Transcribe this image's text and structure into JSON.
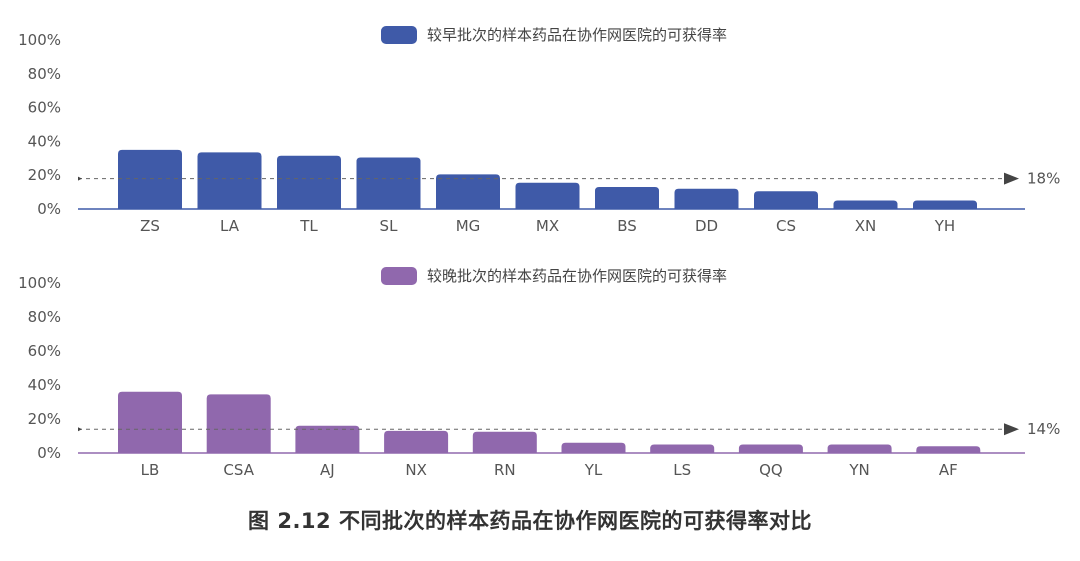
{
  "caption": "图 2.12 不同批次的样本药品在协作网医院的可获得率对比",
  "chart_data": [
    {
      "type": "bar",
      "legend": "较早批次的样本药品在协作网医院的可获得率",
      "legend_position": "top-center",
      "color": "#3f5aa8",
      "categories": [
        "ZS",
        "LA",
        "TL",
        "SL",
        "MG",
        "MX",
        "BS",
        "DD",
        "CS",
        "XN",
        "YH"
      ],
      "values": [
        35,
        33.5,
        31.5,
        30.5,
        20.5,
        15.5,
        13,
        12,
        10.5,
        5,
        5
      ],
      "ylim": [
        0,
        100
      ],
      "yticks": [
        "0%",
        "20%",
        "40%",
        "60%",
        "80%",
        "100%"
      ],
      "reference_value": 18,
      "reference_label": "18%"
    },
    {
      "type": "bar",
      "legend": "较晚批次的样本药品在协作网医院的可获得率",
      "legend_position": "top-center",
      "color": "#9068ad",
      "categories": [
        "LB",
        "CSA",
        "AJ",
        "NX",
        "RN",
        "YL",
        "LS",
        "QQ",
        "YN",
        "AF"
      ],
      "values": [
        36,
        34.5,
        16,
        13,
        12.5,
        6,
        5,
        5,
        5,
        4
      ],
      "ylim": [
        0,
        100
      ],
      "yticks": [
        "0%",
        "20%",
        "40%",
        "60%",
        "80%",
        "100%"
      ],
      "reference_value": 14,
      "reference_label": "14%"
    }
  ]
}
